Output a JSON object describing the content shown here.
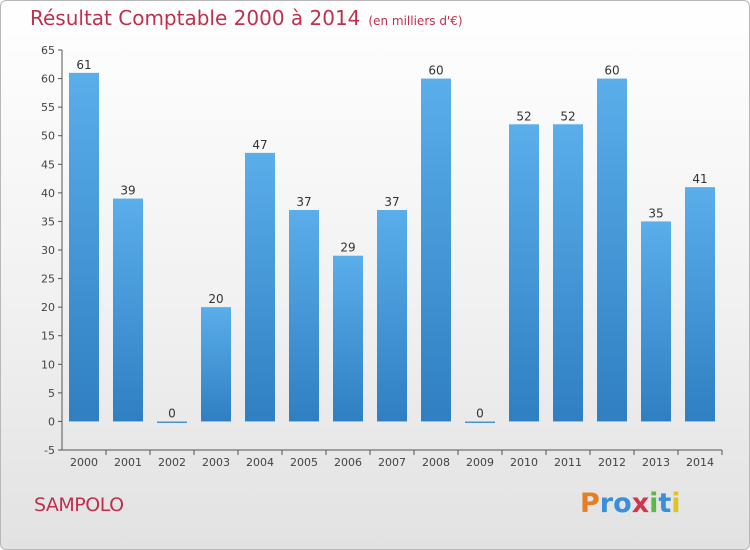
{
  "title": "Résultat Comptable 2000 à 2014",
  "subtitle": "(en milliers d'€)",
  "commune": "SAMPOLO",
  "logo": {
    "letters": [
      "P",
      "r",
      "o",
      "x",
      "i",
      "t",
      "i"
    ],
    "colors": [
      "#e67e22",
      "#3a8fd8",
      "#3a8fd8",
      "#d2354f",
      "#58b947",
      "#3a8fd8",
      "#e3c21a"
    ]
  },
  "colors": {
    "bar": "#4a9fe0",
    "title": "#c0304e"
  },
  "chart_data": {
    "type": "bar",
    "title": "Résultat Comptable 2000 à 2014",
    "subtitle": "(en milliers d'€)",
    "categories": [
      "2000",
      "2001",
      "2002",
      "2003",
      "2004",
      "2005",
      "2006",
      "2007",
      "2008",
      "2009",
      "2010",
      "2011",
      "2012",
      "2013",
      "2014"
    ],
    "values": [
      61,
      39,
      0,
      20,
      47,
      37,
      29,
      37,
      60,
      0,
      52,
      52,
      60,
      35,
      41
    ],
    "ylim": [
      -5,
      65
    ],
    "yticks": [
      -5,
      0,
      5,
      10,
      15,
      20,
      25,
      30,
      35,
      40,
      45,
      50,
      55,
      60,
      65
    ],
    "grid": false,
    "legend": "none"
  }
}
